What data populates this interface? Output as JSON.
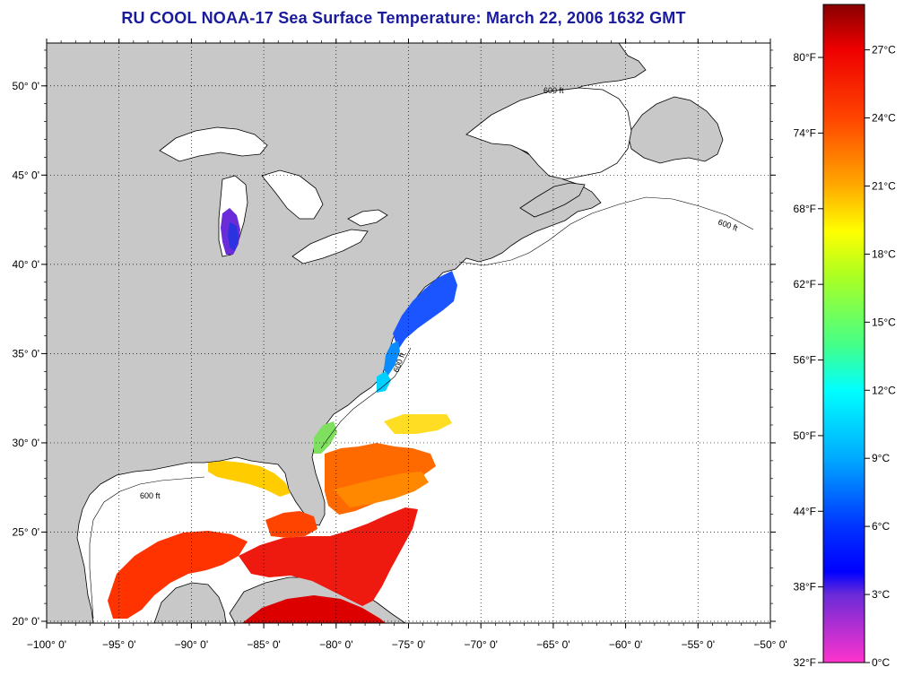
{
  "title": "RU COOL  NOAA-17  Sea Surface Temperature:  March 22, 2006 1632 GMT",
  "colors": {
    "land": "#c8c8c8",
    "water": "#ffffff",
    "coast": "#000000",
    "title": "#1a1a9c"
  },
  "map": {
    "lon_range": [
      -100,
      -50
    ],
    "lat_range": [
      19.9,
      52.4
    ],
    "lon_ticks": [
      {
        "value": -100,
        "label": "−100° 0'"
      },
      {
        "value": -95,
        "label": "−95° 0'"
      },
      {
        "value": -90,
        "label": "−90° 0'"
      },
      {
        "value": -85,
        "label": "−85° 0'"
      },
      {
        "value": -80,
        "label": "−80° 0'"
      },
      {
        "value": -75,
        "label": "−75° 0'"
      },
      {
        "value": -70,
        "label": "−70° 0'"
      },
      {
        "value": -65,
        "label": "−65° 0'"
      },
      {
        "value": -60,
        "label": "−60° 0'"
      },
      {
        "value": -55,
        "label": "−55° 0'"
      },
      {
        "value": -50,
        "label": "−50° 0'"
      }
    ],
    "lat_ticks": [
      {
        "value": 20,
        "label": "20° 0'"
      },
      {
        "value": 25,
        "label": "25° 0'"
      },
      {
        "value": 30,
        "label": "30° 0'"
      },
      {
        "value": 35,
        "label": "35° 0'"
      },
      {
        "value": 40,
        "label": "40° 0'"
      },
      {
        "value": 45,
        "label": "45° 0'"
      },
      {
        "value": 50,
        "label": "50° 0'"
      }
    ],
    "isobath_label": "600 ft"
  },
  "colorbar": {
    "celsius_range": [
      0,
      29
    ],
    "stops": [
      {
        "c": 0,
        "color": "#ff33cc"
      },
      {
        "c": 3,
        "color": "#6a2bd8"
      },
      {
        "c": 4,
        "color": "#0000ff"
      },
      {
        "c": 6,
        "color": "#0033ff"
      },
      {
        "c": 9,
        "color": "#00aaff"
      },
      {
        "c": 12,
        "color": "#00ffff"
      },
      {
        "c": 14,
        "color": "#44ff88"
      },
      {
        "c": 17,
        "color": "#aaff22"
      },
      {
        "c": 19,
        "color": "#ffff00"
      },
      {
        "c": 21,
        "color": "#ffaa00"
      },
      {
        "c": 24,
        "color": "#ff4400"
      },
      {
        "c": 27,
        "color": "#ee0000"
      },
      {
        "c": 29,
        "color": "#880000"
      }
    ],
    "celsius_ticks": [
      {
        "value": 0,
        "label": "0°C"
      },
      {
        "value": 3,
        "label": "3°C"
      },
      {
        "value": 6,
        "label": "6°C"
      },
      {
        "value": 9,
        "label": "9°C"
      },
      {
        "value": 12,
        "label": "12°C"
      },
      {
        "value": 15,
        "label": "15°C"
      },
      {
        "value": 18,
        "label": "18°C"
      },
      {
        "value": 21,
        "label": "21°C"
      },
      {
        "value": 24,
        "label": "24°C"
      },
      {
        "value": 27,
        "label": "27°C"
      }
    ],
    "fahrenheit_ticks": [
      {
        "value": 32,
        "label": "32°F"
      },
      {
        "value": 38,
        "label": "38°F"
      },
      {
        "value": 44,
        "label": "44°F"
      },
      {
        "value": 50,
        "label": "50°F"
      },
      {
        "value": 56,
        "label": "56°F"
      },
      {
        "value": 62,
        "label": "62°F"
      },
      {
        "value": 68,
        "label": "68°F"
      },
      {
        "value": 74,
        "label": "74°F"
      },
      {
        "value": 80,
        "label": "80°F"
      }
    ]
  }
}
